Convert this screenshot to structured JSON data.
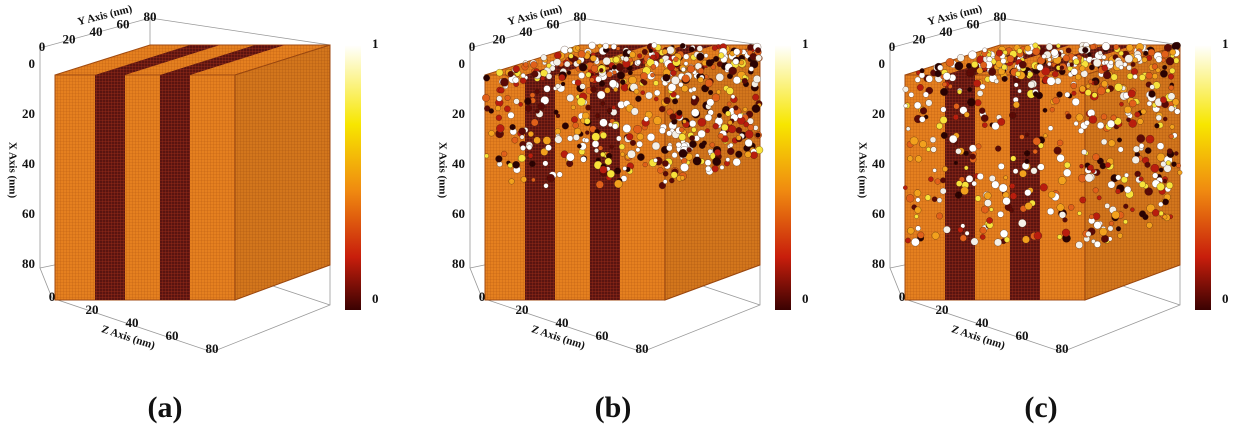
{
  "panels": [
    {
      "caption": "(a)",
      "y_axis_title": "Y Axis (nm)",
      "x_axis_title": "X Axis (nm)",
      "z_axis_title": "Z Axis (nm)",
      "y_ticks": [
        0,
        20,
        40,
        60,
        80
      ],
      "x_ticks": [
        0,
        20,
        40,
        60,
        80
      ],
      "z_ticks": [
        0,
        20,
        40,
        60,
        80
      ],
      "colorbar_ticks": [
        0,
        1
      ]
    },
    {
      "caption": "(b)",
      "y_axis_title": "Y Axis (nm)",
      "x_axis_title": "X Axis (nm)",
      "z_axis_title": "Z Axis (nm)",
      "y_ticks": [
        0,
        20,
        40,
        60,
        80
      ],
      "x_ticks": [
        0,
        20,
        40,
        60,
        80
      ],
      "z_ticks": [
        0,
        20,
        40,
        60,
        80
      ],
      "colorbar_ticks": [
        0,
        1
      ]
    },
    {
      "caption": "(c)",
      "y_axis_title": "Y Axis (nm)",
      "x_axis_title": "X Axis (nm)",
      "z_axis_title": "Z Axis (nm)",
      "y_ticks": [
        0,
        20,
        40,
        60,
        80
      ],
      "x_ticks": [
        0,
        20,
        40,
        60,
        80
      ],
      "z_ticks": [
        0,
        20,
        40,
        60,
        80
      ],
      "colorbar_ticks": [
        0,
        1
      ]
    }
  ]
}
